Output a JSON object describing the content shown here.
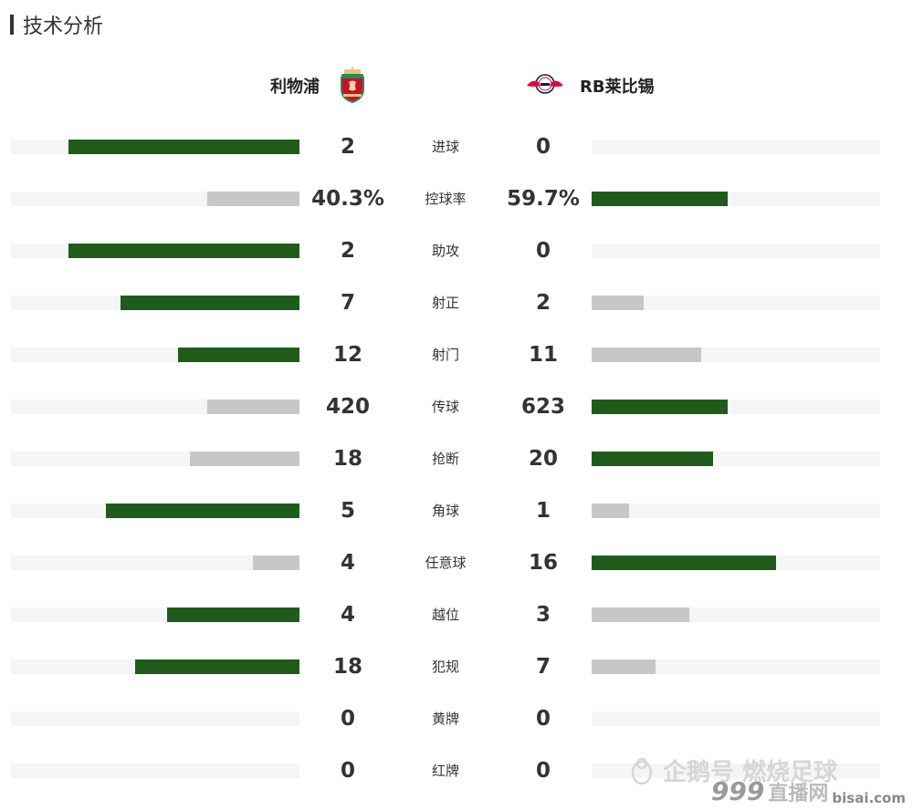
{
  "section_title": "技术分析",
  "home_team": {
    "name": "利物浦",
    "logo_icon": "liverpool-crest-icon"
  },
  "away_team": {
    "name": "RB莱比锡",
    "logo_icon": "rb-leipzig-crest-icon"
  },
  "colors": {
    "win": "#1f5c1a",
    "lose": "#c7c7c7",
    "track": "#f5f5f5"
  },
  "stats": [
    {
      "label": "进球",
      "home": "2",
      "away": "0",
      "home_share": 0.8,
      "away_share": 0.0,
      "leader": "home"
    },
    {
      "label": "控球率",
      "home": "40.3%",
      "away": "59.7%",
      "home_share": 0.32,
      "away_share": 0.47,
      "leader": "away"
    },
    {
      "label": "助攻",
      "home": "2",
      "away": "0",
      "home_share": 0.8,
      "away_share": 0.0,
      "leader": "home"
    },
    {
      "label": "射正",
      "home": "7",
      "away": "2",
      "home_share": 0.62,
      "away_share": 0.18,
      "leader": "home"
    },
    {
      "label": "射门",
      "home": "12",
      "away": "11",
      "home_share": 0.42,
      "away_share": 0.38,
      "leader": "home"
    },
    {
      "label": "传球",
      "home": "420",
      "away": "623",
      "home_share": 0.32,
      "away_share": 0.47,
      "leader": "away"
    },
    {
      "label": "抢断",
      "home": "18",
      "away": "20",
      "home_share": 0.38,
      "away_share": 0.42,
      "leader": "away"
    },
    {
      "label": "角球",
      "home": "5",
      "away": "1",
      "home_share": 0.67,
      "away_share": 0.13,
      "leader": "home"
    },
    {
      "label": "任意球",
      "home": "4",
      "away": "16",
      "home_share": 0.16,
      "away_share": 0.64,
      "leader": "away"
    },
    {
      "label": "越位",
      "home": "4",
      "away": "3",
      "home_share": 0.46,
      "away_share": 0.34,
      "leader": "home"
    },
    {
      "label": "犯规",
      "home": "18",
      "away": "7",
      "home_share": 0.57,
      "away_share": 0.22,
      "leader": "home"
    },
    {
      "label": "黄牌",
      "home": "0",
      "away": "0",
      "home_share": 0.0,
      "away_share": 0.0,
      "leader": "none"
    },
    {
      "label": "红牌",
      "home": "0",
      "away": "0",
      "home_share": 0.0,
      "away_share": 0.0,
      "leader": "none"
    }
  ],
  "watermark": {
    "text": "企鹅号 燃烧足球",
    "badge_num": "999",
    "badge_text": "直播网",
    "badge_domain": "bisai.com"
  }
}
